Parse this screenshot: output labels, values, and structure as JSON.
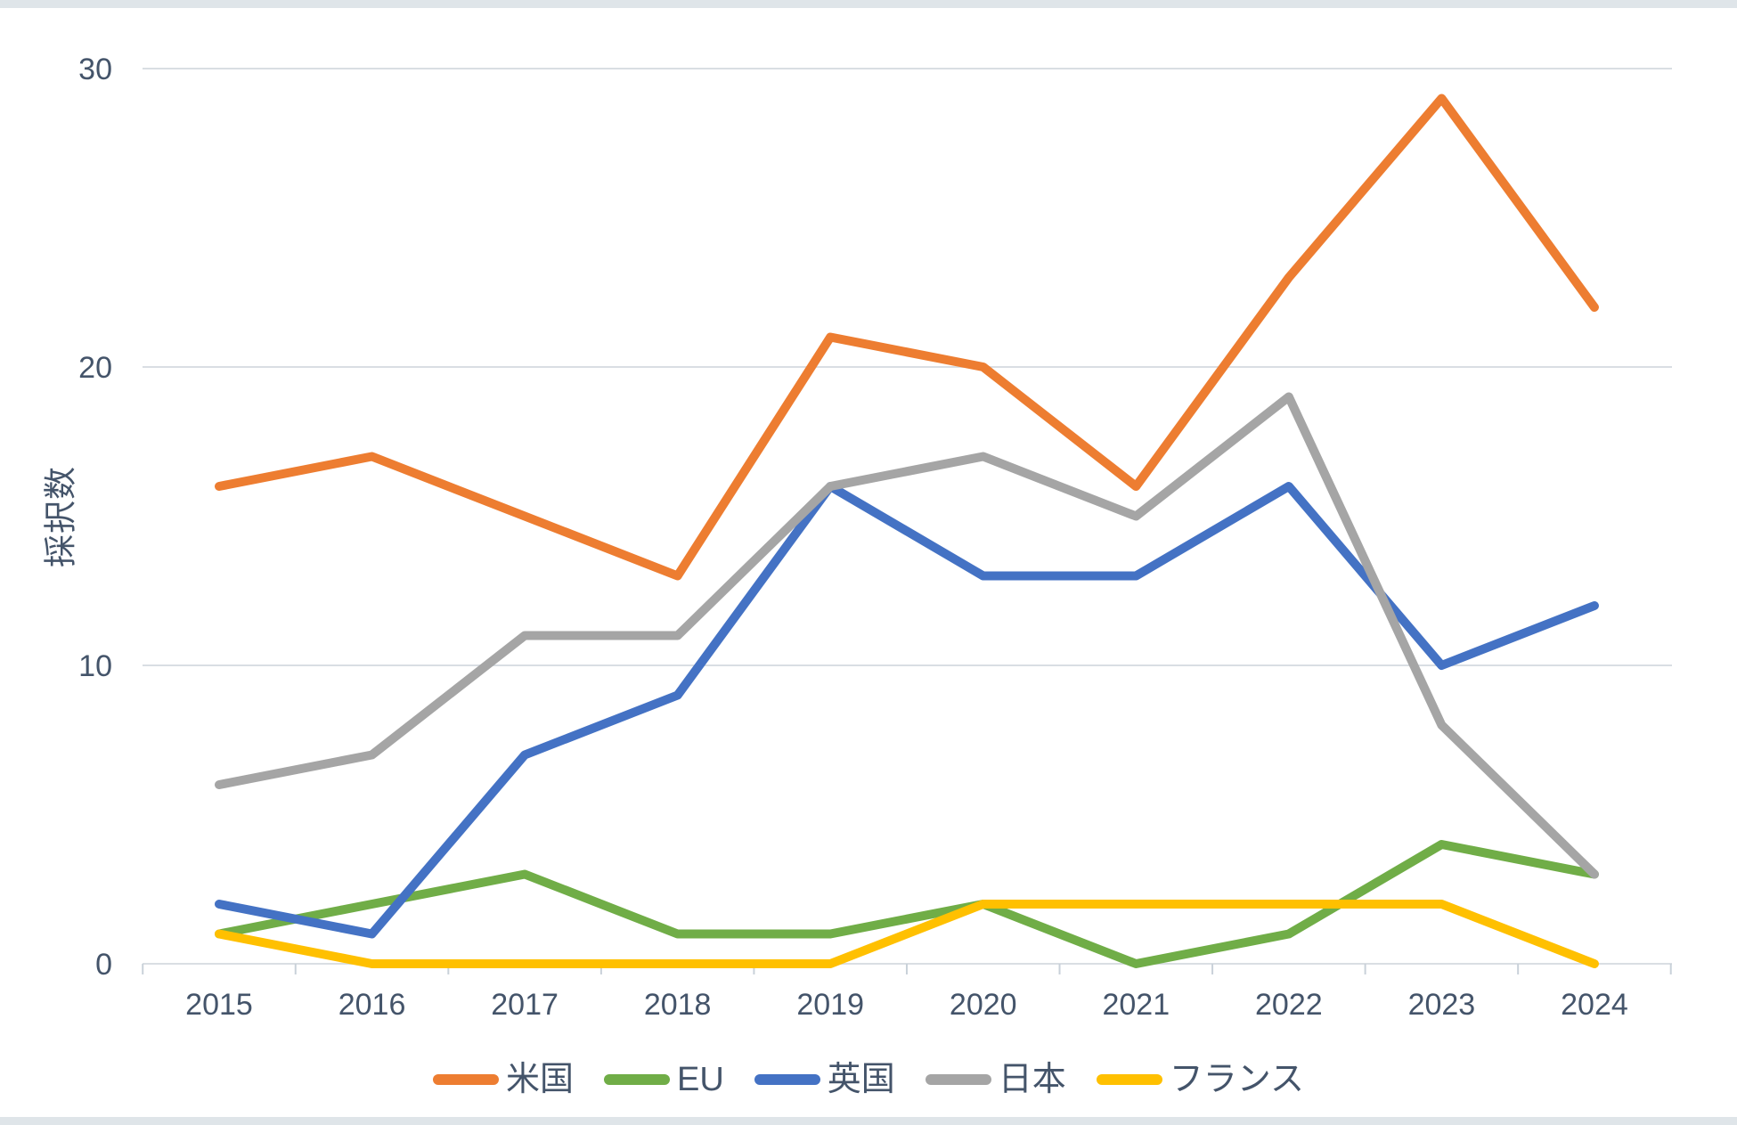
{
  "page": {
    "background": "#ffffff",
    "edge_strip_color": "#dfe5e9",
    "text_color": "#44546A",
    "gridline_color": "#D9DEE3",
    "tick_color": "#C9D1D9"
  },
  "chart_data": {
    "type": "line",
    "title": "",
    "xlabel": "",
    "ylabel": "採択数",
    "categories": [
      "2015",
      "2016",
      "2017",
      "2018",
      "2019",
      "2020",
      "2021",
      "2022",
      "2023",
      "2024"
    ],
    "series": [
      {
        "id": "usa",
        "name": "米国",
        "color": "#ED7D31",
        "values": [
          16,
          17,
          15,
          13,
          21,
          20,
          16,
          23,
          29,
          22
        ]
      },
      {
        "id": "eu",
        "name": "EU",
        "color": "#70AD47",
        "values": [
          1,
          2,
          3,
          1,
          1,
          2,
          0,
          1,
          4,
          3
        ]
      },
      {
        "id": "uk",
        "name": "英国",
        "color": "#4472C4",
        "values": [
          2,
          1,
          7,
          9,
          16,
          13,
          13,
          16,
          10,
          12
        ]
      },
      {
        "id": "japan",
        "name": "日本",
        "color": "#A5A5A5",
        "values": [
          6,
          7,
          11,
          11,
          16,
          17,
          15,
          19,
          8,
          3
        ]
      },
      {
        "id": "france",
        "name": "フランス",
        "color": "#FFC000",
        "values": [
          1,
          0,
          0,
          0,
          0,
          2,
          2,
          2,
          2,
          0
        ]
      }
    ],
    "yticks": [
      0,
      10,
      20,
      30
    ],
    "ylim": [
      0,
      30
    ],
    "grid": "horizontal-only",
    "legend_position": "bottom"
  }
}
